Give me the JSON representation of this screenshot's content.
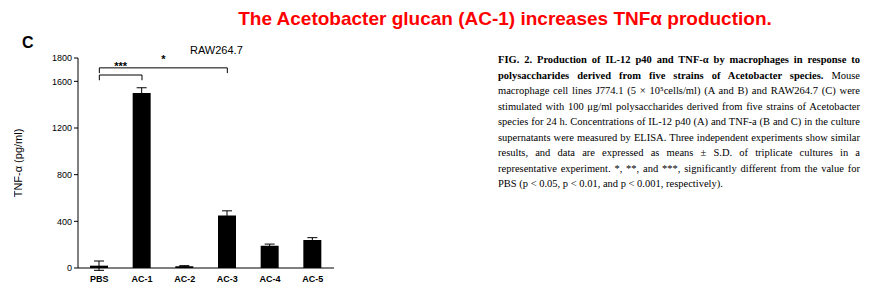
{
  "chart_data": {
    "type": "bar",
    "title": "The Acetobacter glucan (AC-1) increases TNFα production.",
    "panel_label": "C",
    "subtitle": "RAW264.7",
    "y_label": "TNF-α (pg/ml)",
    "categories": [
      "PBS",
      "AC-1",
      "AC-2",
      "AC-3",
      "AC-4",
      "AC-5"
    ],
    "values": [
      20,
      1500,
      15,
      450,
      190,
      240
    ],
    "errors": [
      40,
      45,
      5,
      40,
      15,
      20
    ],
    "color": "#000000",
    "ylim": [
      0,
      1800
    ],
    "yticks": [
      0,
      400,
      800,
      1200,
      1600,
      1800
    ],
    "grid": false,
    "annotations": [
      {
        "from": "PBS",
        "to": "AC-1",
        "label": "***"
      },
      {
        "from": "PBS",
        "to": "AC-3",
        "label": "*"
      }
    ],
    "caption_title": "FIG. 2. Production of IL-12 p40 and TNF-α by macrophages in response to polysaccharides derived from five strains of Acetobacter species.",
    "caption_text": "Mouse macrophage cell lines J774.1 (5 × 10⁵cells/ml) (A and B) and RAW264.7 (C) were stimulated with 100 μg/ml polysaccharides derived from five strains of Acetobacter species for 24 h. Concentrations of IL-12 p40 (A) and TNF-a (B and C) in the culture supernatants were measured by ELISA. Three independent experiments show similar results, and data are expressed as means ± S.D. of triplicate cultures in a representative experiment. *, **, and ***, significantly different from the value for PBS (p < 0.05, p < 0.01, and p < 0.001, respectively)."
  }
}
